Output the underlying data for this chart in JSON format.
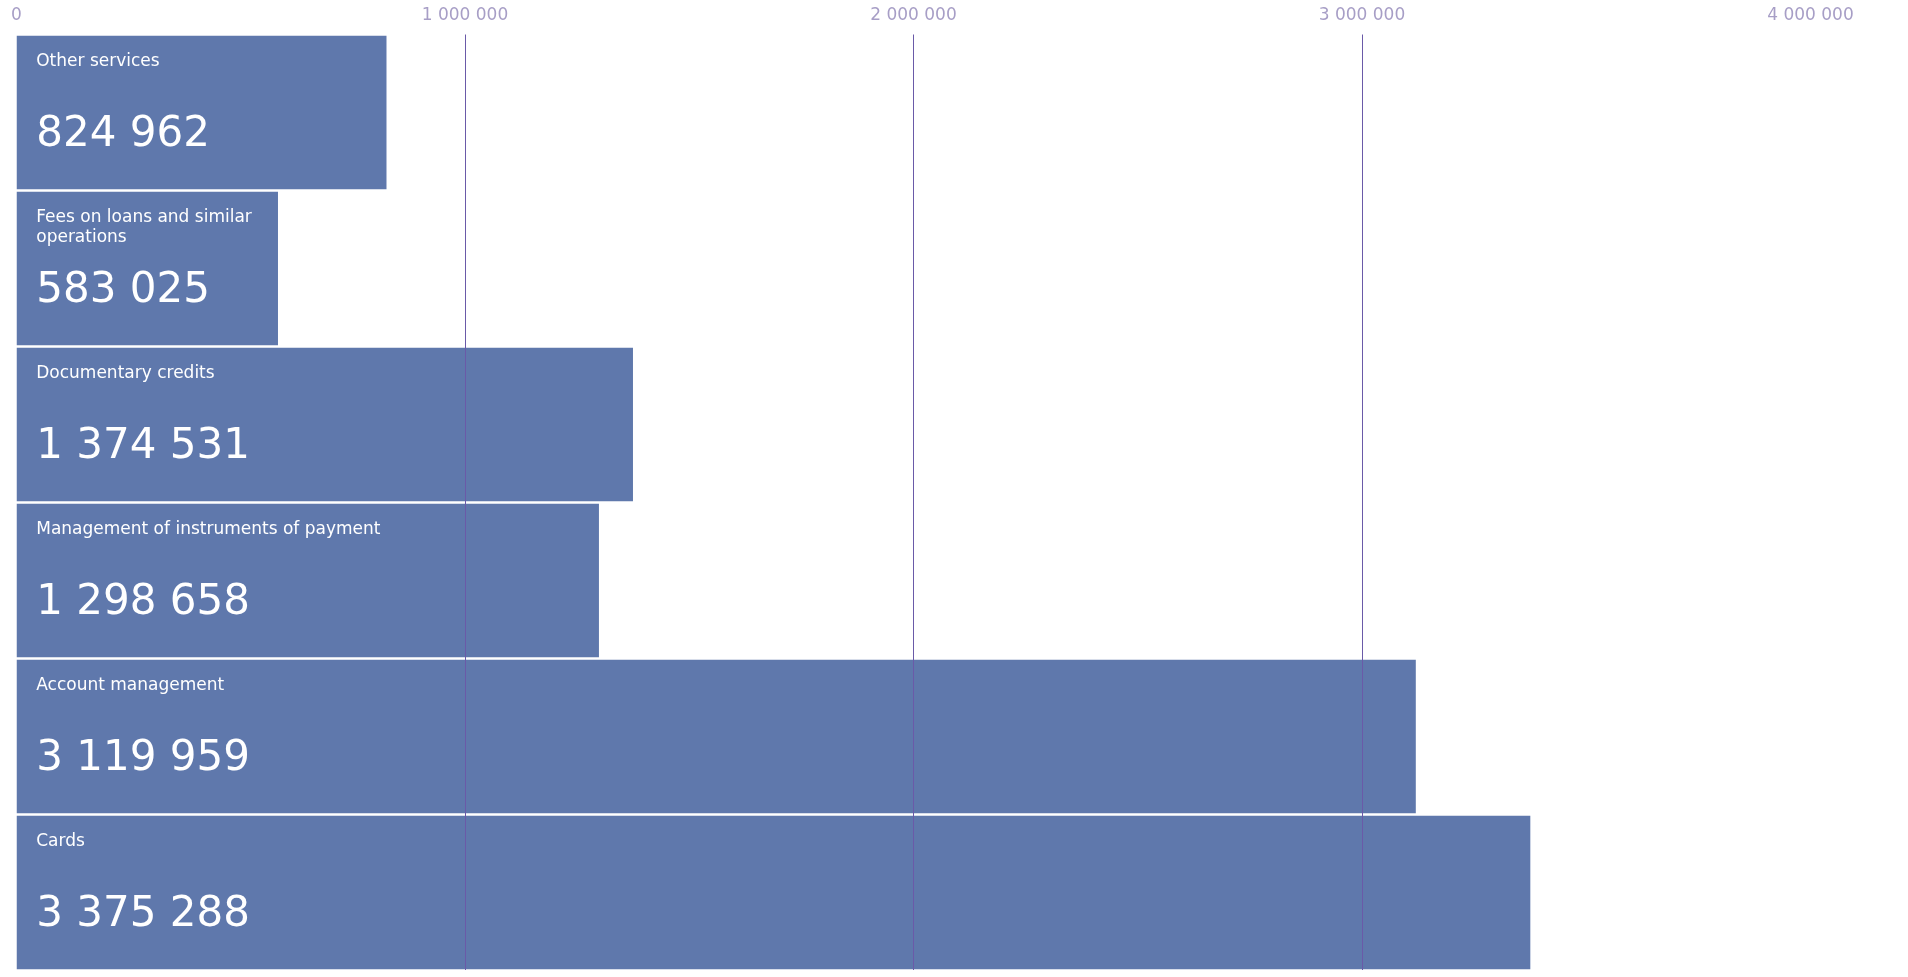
{
  "chart_data": {
    "type": "bar",
    "orientation": "horizontal",
    "categories": [
      "Other services",
      "Fees on loans and similar operations",
      "Documentary credits",
      "Management of instruments of payment",
      "Account management",
      "Cards"
    ],
    "values": [
      824962,
      583025,
      1374531,
      1298658,
      3119959,
      3375288
    ],
    "value_labels": [
      "824 962",
      "583 025",
      "1 374 531",
      "1 298 658",
      "3 119 959",
      "3 375 288"
    ],
    "color": "#5f78ac",
    "xlim": [
      0,
      4000000
    ],
    "xticks": [
      {
        "value": 0,
        "label": "0"
      },
      {
        "value": 1000000,
        "label": "1 000 000"
      },
      {
        "value": 2000000,
        "label": "2 000 000"
      },
      {
        "value": 3000000,
        "label": "3 000 000"
      },
      {
        "value": 4000000,
        "label": "4 000 000"
      }
    ],
    "grid": "x",
    "tick_labels": "x"
  }
}
